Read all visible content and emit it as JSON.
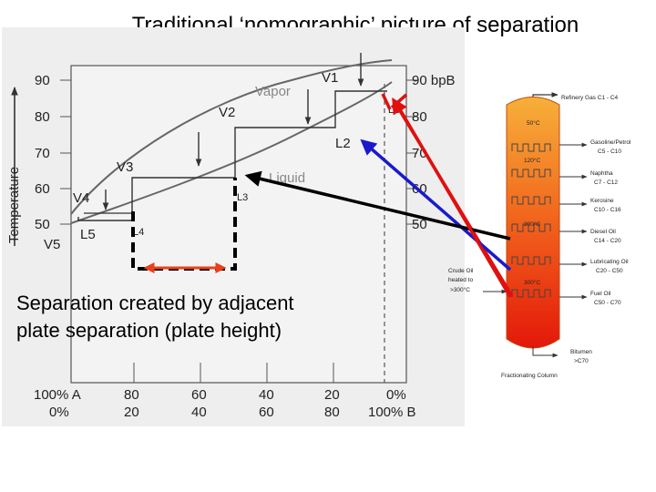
{
  "slide": {
    "title": "Traditional ‘nomographic’ picture of separation",
    "caption_line1": "Separation created by adjacent",
    "caption_line2": "plate separation (plate height)"
  },
  "phase_diagram": {
    "y_axis_label": "Temperature",
    "left_ticks": [
      "90",
      "80",
      "70",
      "60",
      "50"
    ],
    "right_ticks": [
      "90 bpB",
      "80",
      "70",
      "60",
      "50"
    ],
    "vapor_label": "Vapor",
    "liquid_label": "Liquid",
    "vapor_points": [
      "V1",
      "V2",
      "V3",
      "V4",
      "V5"
    ],
    "liquid_points": [
      "L1",
      "L2",
      "L3",
      "L4",
      "L5"
    ],
    "x_axis_row1": [
      "100% A",
      "80",
      "60",
      "40",
      "20",
      "0%"
    ],
    "x_axis_row2": [
      "0%",
      "20",
      "40",
      "60",
      "80",
      "100% B"
    ]
  },
  "column": {
    "title": "Fractionating Column",
    "feed_line1": "Crude Oil",
    "feed_line2": "heated to",
    "feed_line3": ">300°C",
    "temp_top": "50°C",
    "temp_2": "120°C",
    "temp_3": "200°C",
    "temp_4": "300°C",
    "products": [
      {
        "name": "Refinery Gas",
        "sub": "C1 - C4"
      },
      {
        "name": "Gasoline/Petrol",
        "sub": "C5 - C10"
      },
      {
        "name": "Naphtha",
        "sub": "C7 - C12"
      },
      {
        "name": "Kerosine",
        "sub": "C10 - C16"
      },
      {
        "name": "Diesel Oil",
        "sub": "C14 - C20"
      },
      {
        "name": "Lubricating Oil",
        "sub": "C20 - C50"
      },
      {
        "name": "Fuel Oil",
        "sub": "C50 - C70"
      }
    ],
    "bitumen_name": "Bitumen",
    "bitumen_sub": ">C70"
  },
  "colors": {
    "arrow_red": "#e01010",
    "arrow_blue": "#1a1acc",
    "arrow_black": "#000000",
    "span_arrow": "#e8401a",
    "column_top": "#f5a623",
    "column_bottom": "#e8200c"
  }
}
